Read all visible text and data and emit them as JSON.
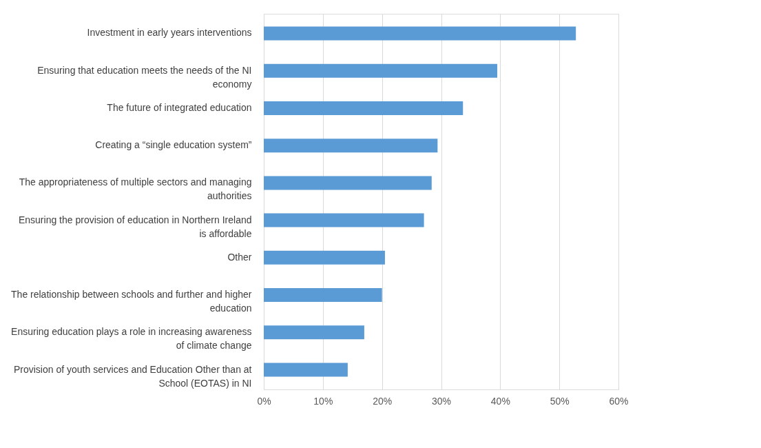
{
  "chart_data": {
    "type": "bar",
    "orientation": "horizontal",
    "categories": [
      "Investment in early years interventions",
      "Ensuring that education meets the needs of the NI economy",
      "The future of integrated education",
      "Creating a “single education system”",
      "The appropriateness of multiple sectors and managing authorities",
      "Ensuring the provision of education in Northern Ireland is affordable",
      "Other",
      "The relationship between schools and further and higher education",
      "Ensuring education plays a role in increasing awareness of climate change",
      "Provision of youth services and Education Other than at School (EOTAS) in NI"
    ],
    "values": [
      52.8,
      39.5,
      33.7,
      29.4,
      28.4,
      27.1,
      20.5,
      20.0,
      17.0,
      14.2
    ],
    "color": "#5b9bd5",
    "xlim": [
      0,
      60
    ],
    "xticks": [
      {
        "value": 0,
        "label": "0%"
      },
      {
        "value": 10,
        "label": "10%"
      },
      {
        "value": 20,
        "label": "20%"
      },
      {
        "value": 30,
        "label": "30%"
      },
      {
        "value": 40,
        "label": "40%"
      },
      {
        "value": 50,
        "label": "50%"
      },
      {
        "value": 60,
        "label": "60%"
      }
    ],
    "grid": "x"
  }
}
